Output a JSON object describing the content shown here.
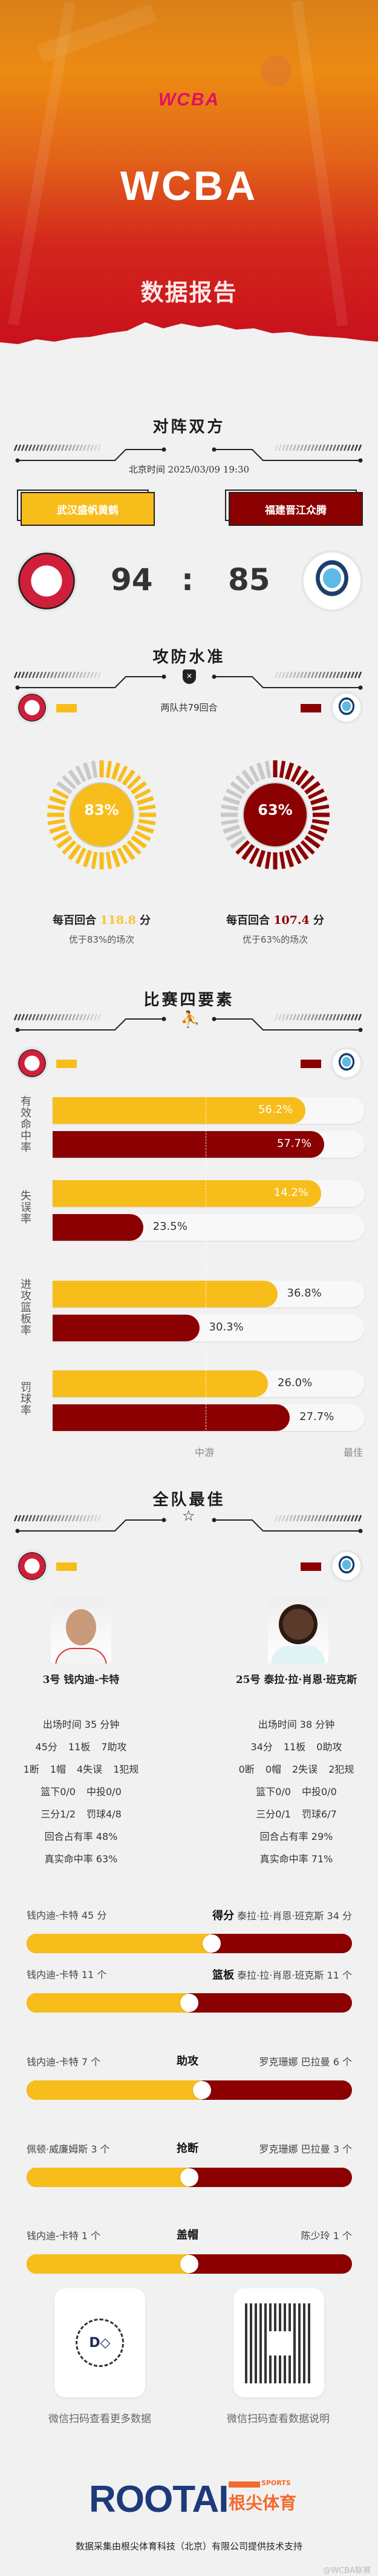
{
  "colors": {
    "home": "#f7bd1a",
    "away": "#8b0000",
    "gauge_off": "#c9c9c9"
  },
  "hero": {
    "logo_text": "WCBA",
    "title": "WCBA",
    "subtitle": "数据报告"
  },
  "matchup": {
    "title": "对阵双方",
    "datetime": "北京时间 2025/03/09 19:30",
    "home": {
      "name": "武汉盛帆黄鹤",
      "score": "94",
      "logo": "wuhan-cranes-logo"
    },
    "away": {
      "name": "福建晋江众腾",
      "score": "85",
      "logo": "zhongteng-basketball-club-logo"
    },
    "separator": ":"
  },
  "efficiency": {
    "title": "攻防水准",
    "possessions_note": "两队共79回合",
    "home": {
      "gauge_pct": 83,
      "gauge_label": "83%",
      "ppp_prefix": "每百回合",
      "ppp": "118.8",
      "ppp_suffix": "分",
      "better": "优于83%的场次"
    },
    "away": {
      "gauge_pct": 63,
      "gauge_label": "63%",
      "ppp_prefix": "每百回合",
      "ppp": "107.4",
      "ppp_suffix": "分",
      "better": "优于63%的场次"
    }
  },
  "four_factors": {
    "title": "比赛四要素",
    "axis_mid": "中游",
    "axis_best": "最佳",
    "factors": [
      {
        "label": "有效命中率",
        "home": "56.2%",
        "home_rating": 0.81,
        "away": "57.7%",
        "away_rating": 0.87
      },
      {
        "label": "失误率",
        "home": "14.2%",
        "home_rating": 0.86,
        "away": "23.5%",
        "away_rating": 0.29
      },
      {
        "label": "进攻篮板率",
        "home": "36.8%",
        "home_rating": 0.72,
        "away": "30.3%",
        "away_rating": 0.47
      },
      {
        "label": "罚球率",
        "home": "26.0%",
        "home_rating": 0.69,
        "away": "27.7%",
        "away_rating": 0.76
      }
    ]
  },
  "best": {
    "title": "全队最佳",
    "home_player": {
      "name": "3号 钱内迪-卡特",
      "lines": [
        [
          "出场时间 35 分钟"
        ],
        [
          "45分",
          "11板",
          "7助攻"
        ],
        [
          "1断",
          "1帽",
          "4失误",
          "1犯规"
        ],
        [
          "篮下0/0",
          "中投0/0"
        ],
        [
          "三分1/2",
          "罚球4/8"
        ],
        [
          "回合占有率 48%"
        ],
        [
          "真实命中率 63%"
        ]
      ]
    },
    "away_player": {
      "name": "25号 泰拉·拉·肖恩·班克斯",
      "lines": [
        [
          "出场时间 38 分钟"
        ],
        [
          "34分",
          "11板",
          "0助攻"
        ],
        [
          "0断",
          "0帽",
          "2失误",
          "2犯规"
        ],
        [
          "篮下0/0",
          "中投0/0"
        ],
        [
          "三分0/1",
          "罚球6/7"
        ],
        [
          "回合占有率 29%"
        ],
        [
          "真实命中率 71%"
        ]
      ]
    },
    "comparisons": [
      {
        "category": "得分",
        "left_name": "钱内迪-卡特",
        "left_value": 45,
        "right_name": "泰拉·拉·肖恩·班克斯",
        "right_value": 34,
        "unit": "分"
      },
      {
        "category": "篮板",
        "left_name": "钱内迪-卡特",
        "left_value": 11,
        "right_name": "泰拉·拉·肖恩·班克斯",
        "right_value": 11,
        "unit": "个"
      },
      {
        "category": "助攻",
        "left_name": "钱内迪-卡特",
        "left_value": 7,
        "right_name": "罗克珊娜 巴拉曼",
        "right_value": 6,
        "unit": "个"
      },
      {
        "category": "抢断",
        "left_name": "佩顿·威廉姆斯",
        "left_value": 3,
        "right_name": "罗克珊娜 巴拉曼",
        "right_value": 3,
        "unit": "个"
      },
      {
        "category": "盖帽",
        "left_name": "钱内迪-卡特",
        "left_value": 1,
        "right_name": "陈少玲",
        "right_value": 1,
        "unit": "个"
      }
    ]
  },
  "footer": {
    "qr_left_caption": "微信扫码查看更多数据",
    "qr_right_caption": "微信扫码查看数据说明",
    "sponsor_logo": "ROOTAI",
    "sponsor_sports": "SPORTS",
    "sponsor_cn": "根尖体育",
    "credit": "数据采集由根尖体育科技（北京）有限公司提供技术支持",
    "watermark": "@WCBA联赛"
  }
}
